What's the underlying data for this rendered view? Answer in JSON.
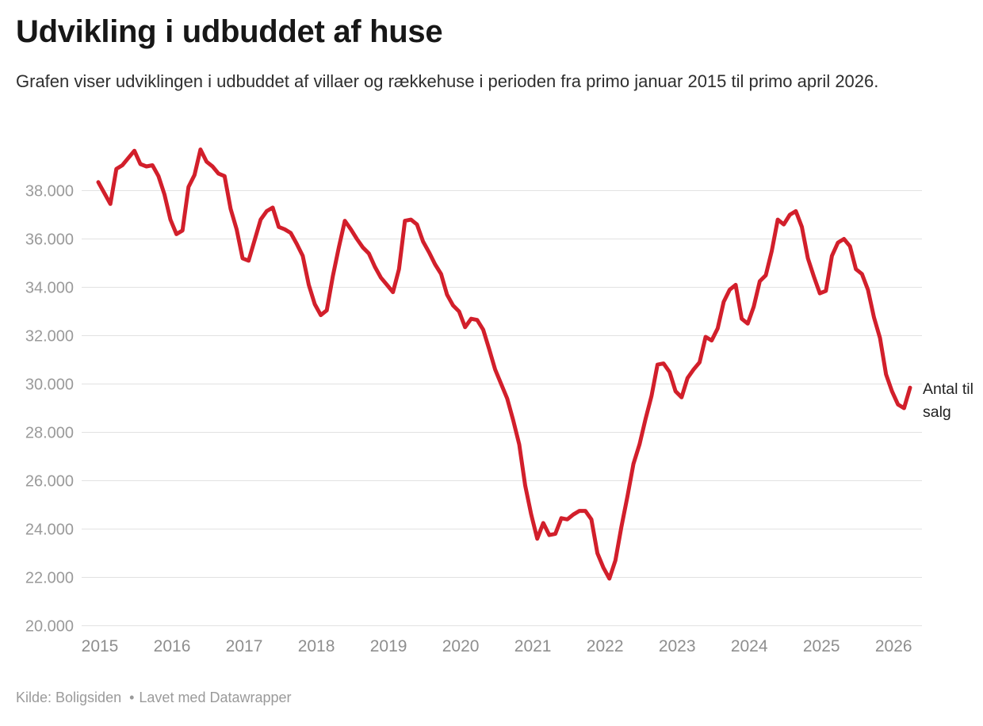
{
  "header": {
    "title": "Udvikling i udbuddet af huse",
    "description": "Grafen viser udviklingen i udbuddet af villaer og rækkehuse i perioden fra primo januar 2015 til primo april 2026."
  },
  "footer": {
    "source": "Kilde: Boligsiden",
    "separator": "•",
    "attribution": "Lavet med Datawrapper"
  },
  "colors": {
    "background": "#ffffff",
    "line": "#d21f2b",
    "grid": "#e2e2e2",
    "axis_text_y": "#9a9a9a",
    "axis_text_x": "#8e8e8e",
    "title_text": "#171717",
    "subtitle_text": "#2e2e2e",
    "footer_text": "#9a9a9a",
    "annotation_text": "#222222"
  },
  "chart_data": {
    "type": "line",
    "title": "Udvikling i udbuddet af huse",
    "xlabel": "",
    "ylabel": "Antal til salg",
    "frequency": "monthly",
    "x_start": "2015-01",
    "x_end": "2026-04",
    "ylim": [
      20000,
      39800
    ],
    "grid": "horizontal",
    "legend_position": "right-of-line-end",
    "y_ticks": [
      {
        "value": 20000,
        "label": "20.000"
      },
      {
        "value": 22000,
        "label": "22.000"
      },
      {
        "value": 24000,
        "label": "24.000"
      },
      {
        "value": 26000,
        "label": "26.000"
      },
      {
        "value": 28000,
        "label": "28.000"
      },
      {
        "value": 30000,
        "label": "30.000"
      },
      {
        "value": 32000,
        "label": "32.000"
      },
      {
        "value": 34000,
        "label": "34.000"
      },
      {
        "value": 36000,
        "label": "36.000"
      },
      {
        "value": 38000,
        "label": "38.000"
      }
    ],
    "x_ticks": [
      "2015",
      "2016",
      "2017",
      "2018",
      "2019",
      "2020",
      "2021",
      "2022",
      "2023",
      "2024",
      "2025",
      "2026"
    ],
    "series": [
      {
        "name": "Antal til salg",
        "color": "#d21f2b",
        "values": [
          38350,
          37900,
          37450,
          38900,
          39050,
          39350,
          39650,
          39100,
          39000,
          39050,
          38600,
          37850,
          36800,
          36200,
          36350,
          38150,
          38650,
          39700,
          39200,
          39000,
          38700,
          38600,
          37250,
          36400,
          35200,
          35100,
          35950,
          36800,
          37150,
          37300,
          36500,
          36400,
          36250,
          35800,
          35300,
          34100,
          33300,
          32850,
          33050,
          34450,
          35650,
          36750,
          36400,
          36000,
          35650,
          35400,
          34850,
          34400,
          34100,
          33800,
          34750,
          36750,
          36800,
          36600,
          35900,
          35450,
          34950,
          34550,
          33700,
          33250,
          33000,
          32350,
          32700,
          32650,
          32250,
          31450,
          30600,
          30000,
          29400,
          28500,
          27500,
          25800,
          24600,
          23600,
          24250,
          23750,
          23800,
          24450,
          24400,
          24600,
          24750,
          24750,
          24400,
          23000,
          22400,
          21950,
          22700,
          24100,
          25350,
          26700,
          27500,
          28550,
          29500,
          30800,
          30850,
          30500,
          29700,
          29450,
          30250,
          30600,
          30900,
          31950,
          31800,
          32300,
          33400,
          33900,
          34100,
          32700,
          32500,
          33200,
          34250,
          34500,
          35500,
          36800,
          36600,
          37000,
          37150,
          36500,
          35200,
          34450,
          33750,
          33850,
          35300,
          35850,
          36000,
          35700,
          34750,
          34550,
          33900,
          32750,
          31900,
          30400,
          29700,
          29150,
          29000,
          29850
        ]
      }
    ]
  }
}
